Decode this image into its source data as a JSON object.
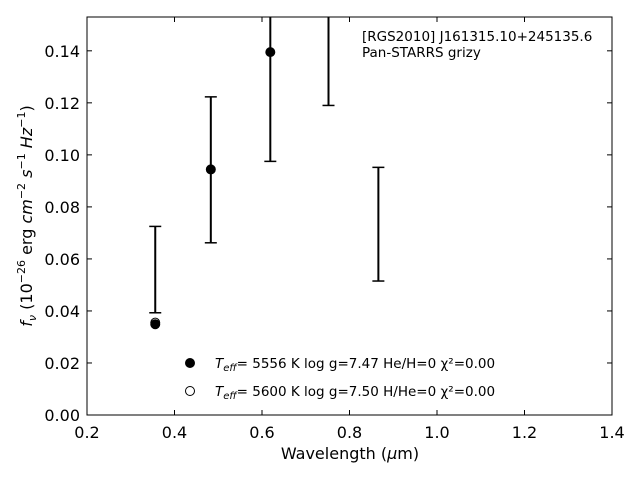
{
  "chart_data": {
    "type": "scatter",
    "xlabel": "Wavelength (μm)",
    "ylabel": "f_ν (10^-26 erg cm^-2 s^-1 Hz^-1)",
    "xlim": [
      0.2,
      1.4
    ],
    "ylim": [
      0.0,
      0.153
    ],
    "x_ticks": [
      0.2,
      0.4,
      0.6,
      0.8,
      1.0,
      1.2,
      1.4
    ],
    "x_tick_labels": [
      "0.2",
      "0.4",
      "0.6",
      "0.8",
      "1.0",
      "1.2",
      "1.4"
    ],
    "y_ticks": [
      0.0,
      0.02,
      0.04,
      0.06,
      0.08,
      0.1,
      0.12,
      0.14
    ],
    "y_tick_labels": [
      "0.00",
      "0.02",
      "0.04",
      "0.06",
      "0.08",
      "0.10",
      "0.12",
      "0.14"
    ],
    "grid": false,
    "annotations": [
      "[RGS2010] J161315.10+245135.6",
      "Pan-STARRS grizy"
    ],
    "observed": [
      {
        "x": 0.356,
        "low": 0.0393,
        "high": 0.0725
      },
      {
        "x": 0.483,
        "low": 0.0662,
        "high": 0.1223
      },
      {
        "x": 0.619,
        "low": 0.0975,
        "high": 0.162
      },
      {
        "x": 0.752,
        "low": 0.119,
        "high": 0.165
      },
      {
        "x": 0.866,
        "low": 0.0515,
        "high": 0.0952
      }
    ],
    "series": [
      {
        "marker": "filled",
        "legend": {
          "temp_value": "5556 K",
          "rest": "log g=7.47  He/H=0  χ²=0.00"
        },
        "points": [
          {
            "x": 0.356,
            "y": 0.0349
          },
          {
            "x": 0.483,
            "y": 0.0944
          },
          {
            "x": 0.619,
            "y": 0.1395
          }
        ]
      },
      {
        "marker": "open",
        "legend": {
          "temp_value": "5600 K",
          "rest": "log g=7.50  H/He=0  χ²=0.00"
        },
        "points": [
          {
            "x": 0.356,
            "y": 0.0355
          }
        ]
      }
    ]
  }
}
